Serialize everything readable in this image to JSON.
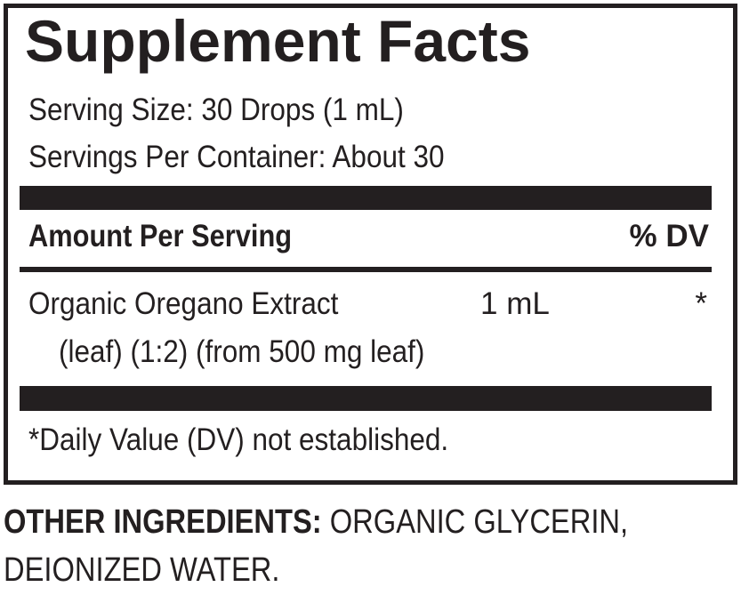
{
  "label": {
    "title": "Supplement Facts",
    "serving_size": "Serving Size: 30 Drops (1 mL)",
    "servings_per_container": "Servings Per Container: About 30",
    "header": {
      "amount": "Amount Per Serving",
      "dv": "% DV"
    },
    "rows": [
      {
        "name": "Organic Oregano Extract",
        "amount": "1 mL",
        "dv": "*",
        "detail": "(leaf) (1:2) (from 500 mg leaf)"
      }
    ],
    "footnote": "*Daily Value (DV) not established."
  },
  "other_ingredients": {
    "heading": "OTHER INGREDIENTS:",
    "text": "ORGANIC GLYCERIN, DEIONIZED WATER."
  }
}
